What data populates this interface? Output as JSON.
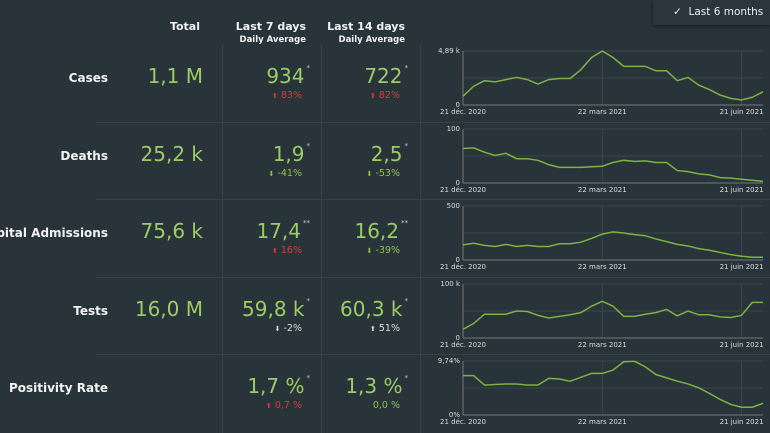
{
  "header": {
    "total": "Total",
    "last7": "Last 7 days",
    "last14": "Last 14 days",
    "daily_avg": "Daily Average"
  },
  "range_dropdown": {
    "check_icon": "✓",
    "label": "Last 6 months"
  },
  "colors": {
    "value": "#9ccc65",
    "up_bad": "#d63b3b",
    "line": "#7cb342"
  },
  "rows": [
    {
      "label": "Cases",
      "total": "1,1 M",
      "l7": "934",
      "l7_mark": "*",
      "l7_change": "83%",
      "l7_dir": "up",
      "l7_color": "red",
      "l14": "722",
      "l14_mark": "*",
      "l14_change": "82%",
      "l14_dir": "up",
      "l14_color": "red"
    },
    {
      "label": "Deaths",
      "total": "25,2 k",
      "l7": "1,9",
      "l7_mark": "*",
      "l7_change": "-41%",
      "l7_dir": "down",
      "l7_color": "green",
      "l14": "2,5",
      "l14_mark": "*",
      "l14_change": "-53%",
      "l14_dir": "down",
      "l14_color": "green"
    },
    {
      "label": "Hospital Admissions",
      "total": "75,6 k",
      "l7": "17,4",
      "l7_mark": "**",
      "l7_change": "16%",
      "l7_dir": "up",
      "l7_color": "red",
      "l14": "16,2",
      "l14_mark": "**",
      "l14_change": "-39%",
      "l14_dir": "down",
      "l14_color": "green"
    },
    {
      "label": "Tests",
      "total": "16,0 M",
      "l7": "59,8 k",
      "l7_mark": "*",
      "l7_change": "-2%",
      "l7_dir": "down",
      "l7_color": "grey",
      "l14": "60,3 k",
      "l14_mark": "*",
      "l14_change": "51%",
      "l14_dir": "up",
      "l14_color": "grey"
    },
    {
      "label": "Positivity Rate",
      "total": "",
      "l7": "1,7 %",
      "l7_mark": "*",
      "l7_change": "0,7 %",
      "l7_dir": "up",
      "l7_color": "red",
      "l14": "1,3 %",
      "l14_mark": "*",
      "l14_change": "0,0 %",
      "l14_dir": "",
      "l14_color": "green"
    }
  ],
  "chart_data": [
    {
      "type": "line",
      "metric": "Cases",
      "x_ticks": [
        "21 déc. 2020",
        "22 mars 2021",
        "21 juin 2021"
      ],
      "y_ticks": [
        "0",
        "4,89 k"
      ],
      "ylim": [
        0,
        4890
      ],
      "x_unit": "weeks from 21 déc. 2020",
      "values": [
        800,
        1700,
        2200,
        2100,
        2300,
        2500,
        2300,
        1900,
        2300,
        2400,
        2400,
        3200,
        4300,
        4890,
        4300,
        3500,
        3500,
        3500,
        3100,
        3100,
        2200,
        2500,
        1800,
        1400,
        900,
        600,
        450,
        700,
        1200
      ]
    },
    {
      "type": "line",
      "metric": "Deaths",
      "x_ticks": [
        "21 déc. 2020",
        "22 mars 2021",
        "21 juin 2021"
      ],
      "y_ticks": [
        "0",
        "100"
      ],
      "ylim": [
        0,
        100
      ],
      "values": [
        64,
        65,
        57,
        51,
        55,
        45,
        45,
        42,
        34,
        29,
        29,
        29,
        30,
        31,
        38,
        42,
        40,
        41,
        38,
        38,
        23,
        21,
        17,
        15,
        10,
        9,
        7,
        5,
        3
      ]
    },
    {
      "type": "line",
      "metric": "Hospital Admissions",
      "x_ticks": [
        "21 déc. 2020",
        "22 mars 2021",
        "21 juin 2021"
      ],
      "y_ticks": [
        "0",
        "500"
      ],
      "ylim": [
        0,
        500
      ],
      "values": [
        140,
        155,
        135,
        125,
        145,
        125,
        135,
        125,
        125,
        150,
        150,
        165,
        200,
        240,
        260,
        250,
        235,
        225,
        195,
        170,
        145,
        130,
        105,
        90,
        70,
        50,
        35,
        25,
        25
      ]
    },
    {
      "type": "line",
      "metric": "Tests",
      "x_ticks": [
        "21 déc. 2020",
        "22 mars 2021",
        "21 juin 2021"
      ],
      "y_ticks": [
        "0",
        "100 k"
      ],
      "ylim": [
        0,
        100000
      ],
      "values": [
        16000,
        27000,
        44000,
        44000,
        44000,
        50000,
        49000,
        42000,
        37000,
        40000,
        43000,
        47000,
        59000,
        68000,
        59000,
        40000,
        40000,
        44000,
        47000,
        53000,
        41000,
        50000,
        43000,
        43000,
        39000,
        38000,
        42000,
        66000,
        66000
      ]
    },
    {
      "type": "line",
      "metric": "Positivity Rate",
      "x_ticks": [
        "21 déc. 2020",
        "22 mars 2021",
        "21 juin 2021"
      ],
      "y_ticks": [
        "0%",
        "9,74%"
      ],
      "ylim": [
        0,
        9.74
      ],
      "values": [
        7.1,
        7.1,
        5.4,
        5.5,
        5.6,
        5.6,
        5.4,
        5.4,
        6.6,
        6.5,
        6.1,
        6.8,
        7.5,
        7.5,
        8.1,
        9.6,
        9.7,
        8.7,
        7.3,
        6.7,
        6.1,
        5.6,
        4.9,
        3.9,
        2.8,
        1.9,
        1.4,
        1.4,
        2.1
      ]
    }
  ]
}
